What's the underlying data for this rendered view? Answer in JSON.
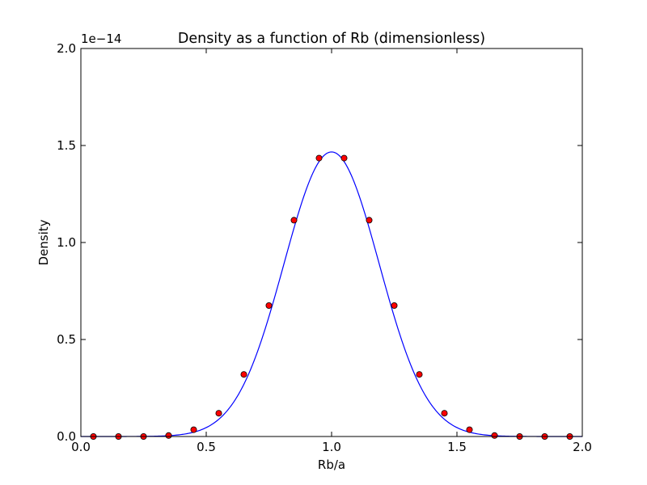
{
  "chart_data": {
    "type": "line",
    "title": "Density as a function of Rb (dimensionless)",
    "xlabel": "Rb/a",
    "ylabel": "Density",
    "y_offset_label": "1e−14",
    "xlim": [
      0.0,
      2.0
    ],
    "ylim": [
      0.0,
      2.0
    ],
    "x_ticks": [
      0.0,
      0.5,
      1.0,
      1.5,
      2.0
    ],
    "x_tick_labels": [
      "0.0",
      "0.5",
      "1.0",
      "1.5",
      "2.0"
    ],
    "y_ticks": [
      0.0,
      0.5,
      1.0,
      1.5,
      2.0
    ],
    "y_tick_labels": [
      "0.0",
      "0.5",
      "1.0",
      "1.5",
      "2.0"
    ],
    "grid": false,
    "series": [
      {
        "kind": "line",
        "color": "#0000ff",
        "curve": {
          "form": "gaussian",
          "amplitude": 1.467,
          "center": 1.0,
          "sigma": 0.19
        },
        "x_range": [
          0.0,
          2.0
        ]
      },
      {
        "kind": "scatter",
        "color": "#ff0000",
        "edge_color": "#000000",
        "x": [
          0.05,
          0.15,
          0.25,
          0.35,
          0.45,
          0.55,
          0.65,
          0.75,
          0.85,
          0.95,
          1.05,
          1.15,
          1.25,
          1.35,
          1.45,
          1.55,
          1.65,
          1.75,
          1.85,
          1.95
        ],
        "y": [
          0.0,
          0.0,
          0.0,
          0.005,
          0.035,
          0.12,
          0.32,
          0.675,
          1.115,
          1.435,
          1.435,
          1.115,
          0.675,
          0.32,
          0.12,
          0.035,
          0.005,
          0.0,
          0.0,
          0.0
        ]
      }
    ]
  }
}
